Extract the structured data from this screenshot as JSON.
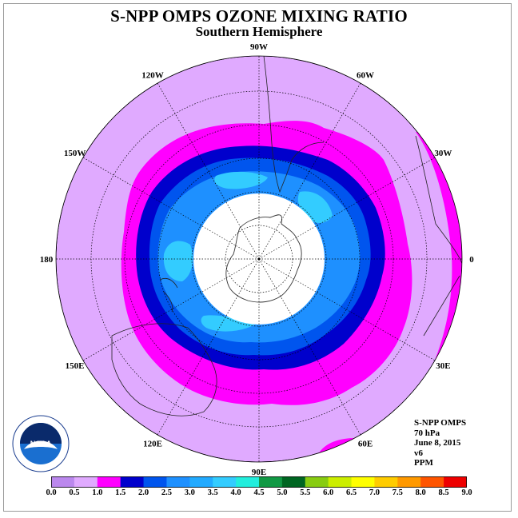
{
  "title": "S-NPP OMPS OZONE MIXING RATIO",
  "subtitle": "Southern Hemisphere",
  "longitude_labels": [
    {
      "text": "90W",
      "angle": -90
    },
    {
      "text": "60W",
      "angle": -60
    },
    {
      "text": "30W",
      "angle": -30
    },
    {
      "text": "0",
      "angle": 0
    },
    {
      "text": "30E",
      "angle": 30
    },
    {
      "text": "60E",
      "angle": 60
    },
    {
      "text": "90E",
      "angle": 90
    },
    {
      "text": "120E",
      "angle": 120
    },
    {
      "text": "150E",
      "angle": 150
    },
    {
      "text": "180",
      "angle": 180
    },
    {
      "text": "150W",
      "angle": 210
    },
    {
      "text": "120W",
      "angle": 240
    }
  ],
  "info": {
    "instrument": "S-NPP OMPS",
    "pressure": "70 hPa",
    "date": "June 8, 2015",
    "version": "v6",
    "units": "PPM"
  },
  "colorbar": {
    "ticks": [
      "0.0",
      "0.5",
      "1.0",
      "1.5",
      "2.0",
      "2.5",
      "3.0",
      "3.5",
      "4.0",
      "4.5",
      "5.0",
      "5.5",
      "6.0",
      "6.5",
      "7.0",
      "7.5",
      "8.0",
      "8.5",
      "9.0"
    ],
    "colors": [
      "#bb88ee",
      "#e0aaff",
      "#ff00ff",
      "#0000cc",
      "#0055ee",
      "#1e90ff",
      "#22aaff",
      "#33ccff",
      "#22eedd",
      "#119944",
      "#006622",
      "#88cc11",
      "#ccee00",
      "#ffff00",
      "#ffcc00",
      "#ff9900",
      "#ff5500",
      "#ee0000",
      "#885533"
    ]
  },
  "map_colors": {
    "background_disk": "#e0aaff",
    "band_1_0": "#ff00ff",
    "band_1_5": "#0000cc",
    "band_2_0": "#0055ee",
    "band_2_5": "#1e90ff",
    "band_3_0": "#33ccff",
    "polar_gap": "#ffffff"
  },
  "logo": {
    "text": "NOAA",
    "ring_text": "NATIONAL OCEANIC AND ATMOSPHERIC ADMINISTRATION · U.S. DEPARTMENT OF COMMERCE"
  }
}
